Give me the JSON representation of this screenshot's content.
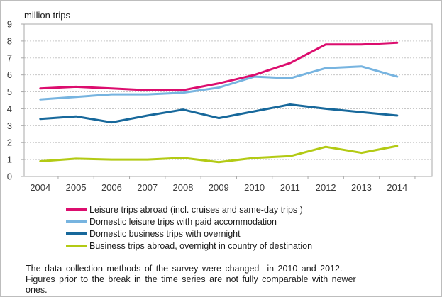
{
  "chart_data": {
    "type": "line",
    "unit_label": "million trips",
    "categories": [
      "2004",
      "2005",
      "2006",
      "2007",
      "2008",
      "2009",
      "2010",
      "2011",
      "2012",
      "2013",
      "2014"
    ],
    "series": [
      {
        "name": "Leisure trips abroad (incl. cruises and same-day trips )",
        "color": "#dc0d6e",
        "values": [
          5.2,
          5.3,
          5.2,
          5.1,
          5.1,
          5.5,
          6.0,
          6.7,
          7.8,
          7.8,
          7.9
        ]
      },
      {
        "name": "Domestic leisure trips with paid accommodation",
        "color": "#77b4e0",
        "values": [
          4.55,
          4.7,
          4.85,
          4.85,
          4.95,
          5.25,
          5.9,
          5.8,
          6.4,
          6.5,
          5.9
        ]
      },
      {
        "name": "Domestic business trips with overnight",
        "color": "#17689b",
        "values": [
          3.4,
          3.55,
          3.2,
          3.6,
          3.95,
          3.45,
          3.85,
          4.25,
          4.0,
          3.8,
          3.6
        ]
      },
      {
        "name": "Business trips abroad, overnight in country of destination",
        "color": "#b3ca14",
        "values": [
          0.9,
          1.05,
          1.0,
          1.0,
          1.1,
          0.85,
          1.1,
          1.2,
          1.75,
          1.4,
          1.8
        ]
      }
    ],
    "ylim": [
      0,
      9
    ],
    "yticks": [
      0,
      1,
      2,
      3,
      4,
      5,
      6,
      7,
      8,
      9
    ],
    "grid": "horizontal-dashed",
    "legend_position": "bottom-left",
    "footnote_lines": [
      "The data collection methods of the survey were changed  in 2010 and 2012.",
      "Figures prior to the break in the time series are not fully comparable with newer",
      "ones."
    ]
  },
  "colors": {
    "axis_text": "#3a3a3a",
    "plot_border": "#a9a9a9",
    "gridline": "#c7c7c7"
  }
}
